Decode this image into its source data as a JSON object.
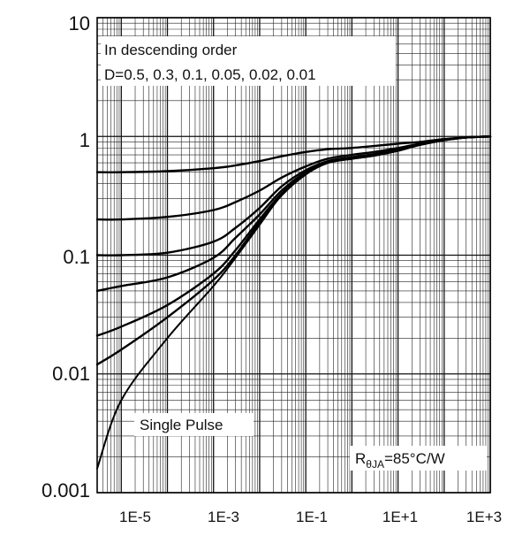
{
  "chart_data": {
    "type": "line",
    "title": "",
    "xlabel": "",
    "ylabel": "",
    "x_scale": "log",
    "y_scale": "log",
    "xlim": [
      3e-06,
      1000
    ],
    "ylim": [
      0.001,
      10
    ],
    "x_ticks": [
      {
        "value": 1e-05,
        "label": "1E-5"
      },
      {
        "value": 0.001,
        "label": "1E-3"
      },
      {
        "value": 0.1,
        "label": "1E-1"
      },
      {
        "value": 10,
        "label": "1E+1"
      },
      {
        "value": 1000,
        "label": "1E+3"
      }
    ],
    "y_ticks": [
      {
        "value": 0.001,
        "label": "0.001"
      },
      {
        "value": 0.01,
        "label": "0.01"
      },
      {
        "value": 0.1,
        "label": "0.1"
      },
      {
        "value": 1,
        "label": "1"
      },
      {
        "value": 10,
        "label": "10"
      }
    ],
    "grid": true,
    "legend": {
      "line1": "In descending order",
      "line2": "D=0.5, 0.3, 0.1, 0.05, 0.02, 0.01",
      "position": "top-left"
    },
    "annotations": {
      "single_pulse": "Single Pulse",
      "rtheta_main": "R",
      "rtheta_sub": "θJA",
      "rtheta_value": "=85°C/W"
    },
    "series": [
      {
        "label": "D=0.5",
        "x": [
          3e-06,
          1e-05,
          0.0001,
          0.001,
          0.003,
          0.01,
          0.03,
          0.1,
          0.3,
          1,
          3,
          10,
          30,
          100,
          300,
          1000
        ],
        "y": [
          0.5,
          0.5,
          0.51,
          0.54,
          0.57,
          0.62,
          0.68,
          0.74,
          0.78,
          0.8,
          0.83,
          0.87,
          0.9,
          0.95,
          0.98,
          1.0
        ]
      },
      {
        "label": "D=0.3",
        "x": [
          3e-06,
          1e-05,
          0.0001,
          0.001,
          0.003,
          0.01,
          0.03,
          0.1,
          0.3,
          1,
          3,
          10,
          30,
          100,
          300,
          1000
        ],
        "y": [
          0.2,
          0.2,
          0.21,
          0.24,
          0.28,
          0.35,
          0.45,
          0.56,
          0.65,
          0.7,
          0.74,
          0.8,
          0.87,
          0.94,
          0.98,
          1.0
        ]
      },
      {
        "label": "D=0.1",
        "x": [
          3e-06,
          1e-05,
          0.0001,
          0.001,
          0.003,
          0.01,
          0.03,
          0.1,
          0.3,
          1,
          3,
          10,
          30,
          100,
          300,
          1000
        ],
        "y": [
          0.1,
          0.1,
          0.105,
          0.13,
          0.17,
          0.25,
          0.38,
          0.52,
          0.62,
          0.67,
          0.71,
          0.78,
          0.86,
          0.94,
          0.98,
          1.0
        ]
      },
      {
        "label": "D=0.05",
        "x": [
          3e-06,
          1e-05,
          0.0001,
          0.001,
          0.003,
          0.01,
          0.03,
          0.1,
          0.3,
          1,
          3,
          10,
          30,
          100,
          300,
          1000
        ],
        "y": [
          0.05,
          0.055,
          0.065,
          0.095,
          0.14,
          0.22,
          0.35,
          0.5,
          0.61,
          0.66,
          0.7,
          0.77,
          0.85,
          0.93,
          0.98,
          1.0
        ]
      },
      {
        "label": "D=0.02",
        "x": [
          3e-06,
          1e-05,
          0.0001,
          0.001,
          0.003,
          0.01,
          0.03,
          0.1,
          0.3,
          1,
          3,
          10,
          30,
          100,
          300,
          1000
        ],
        "y": [
          0.021,
          0.025,
          0.038,
          0.07,
          0.11,
          0.2,
          0.33,
          0.49,
          0.6,
          0.65,
          0.69,
          0.76,
          0.85,
          0.93,
          0.98,
          1.0
        ]
      },
      {
        "label": "D=0.01",
        "x": [
          3e-06,
          1e-05,
          0.0001,
          0.001,
          0.003,
          0.01,
          0.03,
          0.1,
          0.3,
          1,
          3,
          10,
          30,
          100,
          300,
          1000
        ],
        "y": [
          0.012,
          0.016,
          0.03,
          0.062,
          0.1,
          0.19,
          0.32,
          0.48,
          0.6,
          0.65,
          0.69,
          0.76,
          0.85,
          0.93,
          0.98,
          1.0
        ]
      },
      {
        "label": "Single Pulse",
        "x": [
          3e-06,
          1e-05,
          0.0001,
          0.001,
          0.003,
          0.01,
          0.03,
          0.1,
          0.3,
          1,
          3,
          10,
          30,
          100,
          300,
          1000
        ],
        "y": [
          0.0016,
          0.006,
          0.02,
          0.055,
          0.095,
          0.18,
          0.32,
          0.48,
          0.6,
          0.65,
          0.69,
          0.76,
          0.85,
          0.93,
          0.98,
          1.0
        ]
      }
    ]
  }
}
